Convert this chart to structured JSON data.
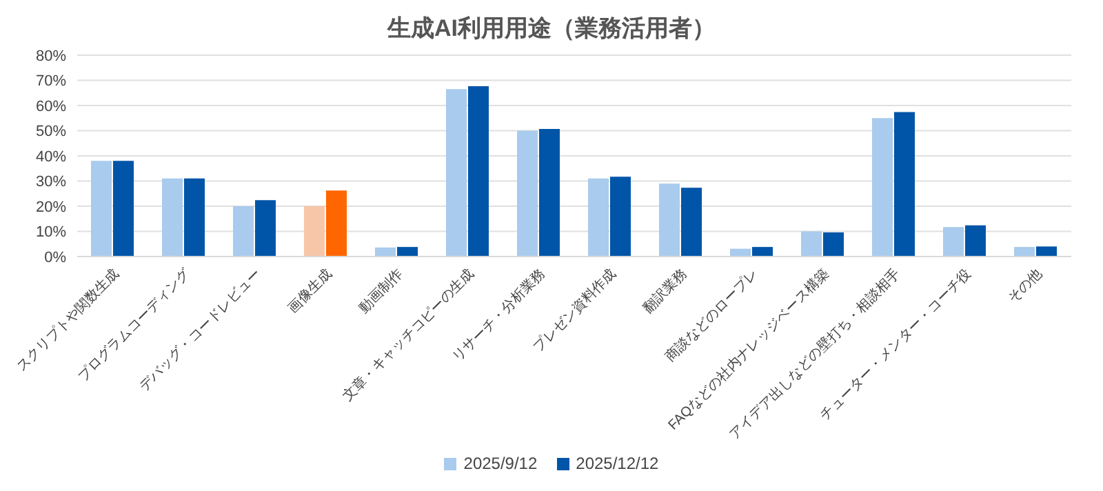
{
  "chart_data": {
    "type": "bar",
    "title": "生成AI利用用途（業務活用者）",
    "categories": [
      "スクリプトや関数生成",
      "プログラムコーディング",
      "デバッグ・コードレビュー",
      "画像生成",
      "動画制作",
      "文章・キャッチコピーの生成",
      "リサーチ・分析業務",
      "プレゼン資料作成",
      "翻訳業務",
      "商談などのロープレ",
      "FAQなどの社内ナレッジベース構築",
      "アイデア出しなどの壁打ち・相談相手",
      "チューター・メンター・コーチ役",
      "その他"
    ],
    "series": [
      {
        "name": "2025/9/12",
        "color": "#a9cbed",
        "colors": [
          "#a9cbed",
          "#a9cbed",
          "#a9cbed",
          "#f7c6a8",
          "#a9cbed",
          "#a9cbed",
          "#a9cbed",
          "#a9cbed",
          "#a9cbed",
          "#a9cbed",
          "#a9cbed",
          "#a9cbed",
          "#a9cbed",
          "#a9cbed"
        ],
        "values": [
          38,
          31,
          20,
          20,
          3.6,
          66.5,
          50,
          31,
          29,
          3.1,
          10,
          55,
          11.7,
          3.8
        ]
      },
      {
        "name": "2025/12/12",
        "color": "#0055a8",
        "colors": [
          "#0055a8",
          "#0055a8",
          "#0055a8",
          "#ff6600",
          "#0055a8",
          "#0055a8",
          "#0055a8",
          "#0055a8",
          "#0055a8",
          "#0055a8",
          "#0055a8",
          "#0055a8",
          "#0055a8",
          "#0055a8"
        ],
        "values": [
          38,
          31,
          22.4,
          26.2,
          3.8,
          67.7,
          50.7,
          31.7,
          27.3,
          3.8,
          9.6,
          57.4,
          12.4,
          4
        ]
      }
    ],
    "ylim": [
      0,
      80
    ],
    "yticks": [
      {
        "value": 0,
        "label": "0%"
      },
      {
        "value": 10,
        "label": "10%"
      },
      {
        "value": 20,
        "label": "20%"
      },
      {
        "value": 30,
        "label": "30%"
      },
      {
        "value": 40,
        "label": "40%"
      },
      {
        "value": 50,
        "label": "50%"
      },
      {
        "value": 60,
        "label": "60%"
      },
      {
        "value": 70,
        "label": "70%"
      },
      {
        "value": 80,
        "label": "80%"
      }
    ],
    "grid": "y",
    "legend": "bottom"
  }
}
